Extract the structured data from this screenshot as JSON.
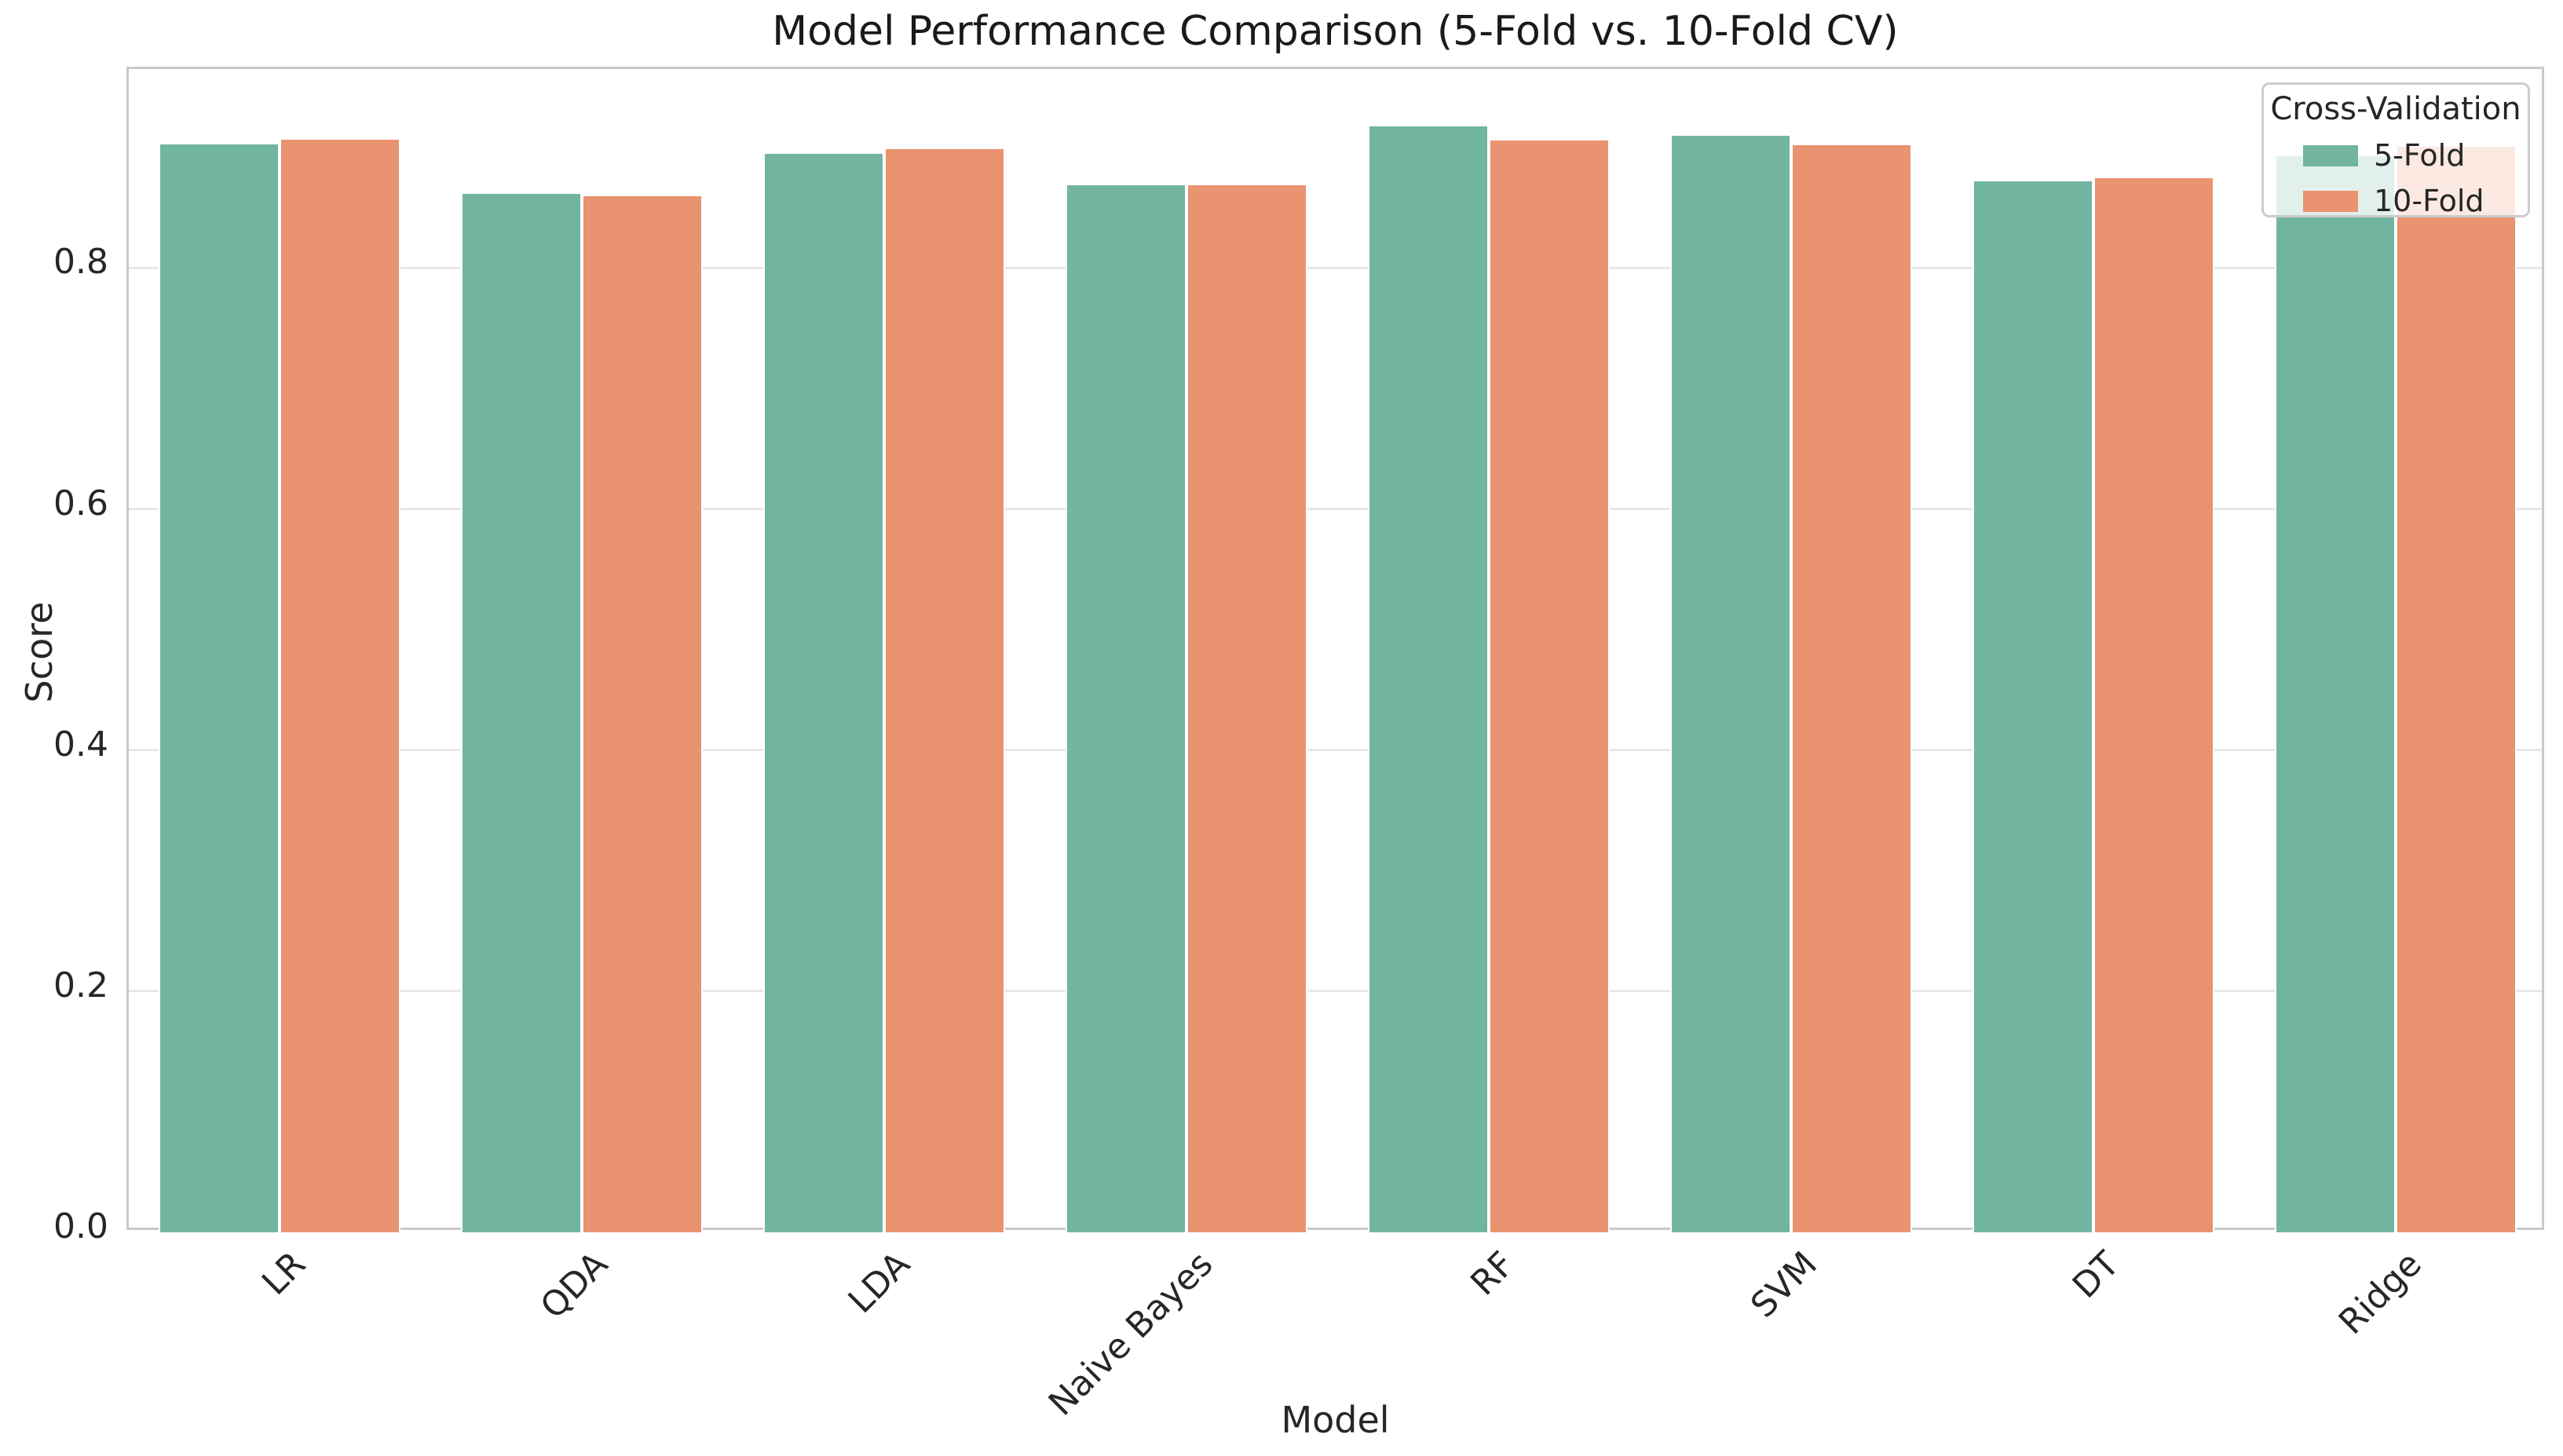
{
  "chart_data": {
    "type": "bar",
    "title": "Model Performance Comparison (5-Fold vs. 10-Fold CV)",
    "xlabel": "Model",
    "ylabel": "Score",
    "categories": [
      "LR",
      "QDA",
      "LDA",
      "Naive Bayes",
      "RF",
      "SVM",
      "DT",
      "Ridge"
    ],
    "series": [
      {
        "name": "5-Fold",
        "color": "#71b5a1",
        "values": [
          0.904,
          0.863,
          0.896,
          0.87,
          0.919,
          0.911,
          0.873,
          0.894
        ]
      },
      {
        "name": "10-Fold",
        "color": "#e99370",
        "values": [
          0.908,
          0.861,
          0.9,
          0.87,
          0.907,
          0.903,
          0.876,
          0.902
        ]
      }
    ],
    "legend_title": "Cross-Validation",
    "legend_position": "upper right",
    "ylim": [
      0,
      0.965
    ],
    "yticks": [
      0.0,
      0.2,
      0.4,
      0.6,
      0.8
    ],
    "ytick_labels": [
      "0.0",
      "0.2",
      "0.4",
      "0.6",
      "0.8"
    ],
    "grid": "horizontal",
    "bar_group_width_fraction": 0.8
  },
  "colors": {
    "text": "#262626",
    "grid": "#e8e8e8",
    "spine": "#c9c9c9",
    "legend_border": "#cccccc",
    "background": "#ffffff"
  }
}
